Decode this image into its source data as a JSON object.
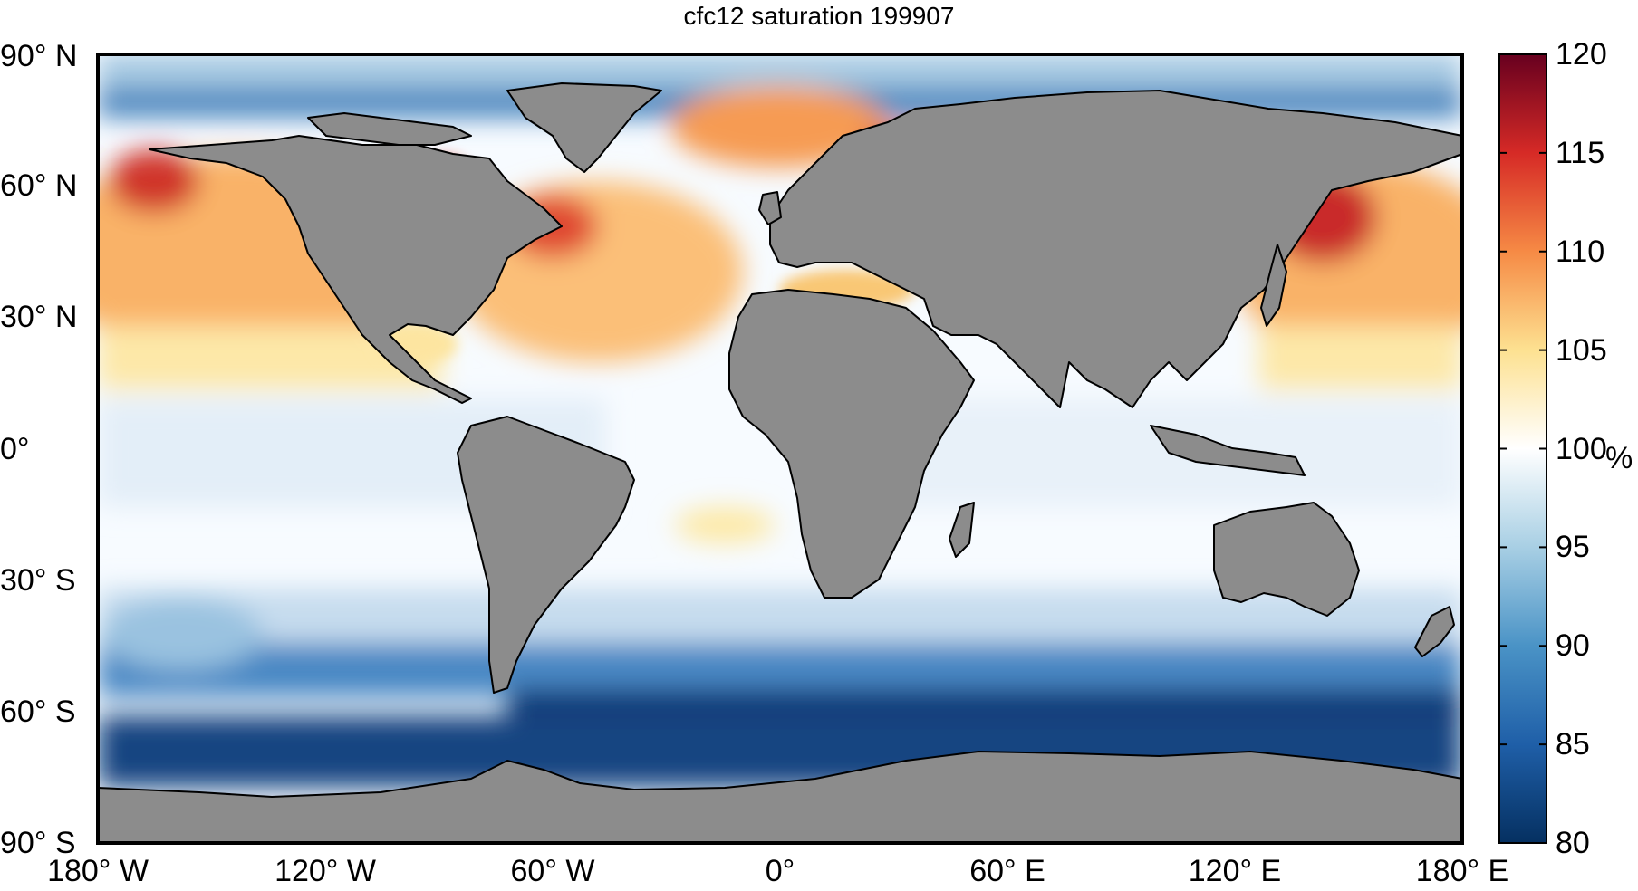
{
  "title": "cfc12 saturation 199907",
  "map": {
    "projection": "equirectangular",
    "lon_range": [
      -180,
      180
    ],
    "lat_range": [
      -90,
      90
    ],
    "lat_ticks": [
      {
        "value": 90,
        "label": "90° N"
      },
      {
        "value": 60,
        "label": "60° N"
      },
      {
        "value": 30,
        "label": "30° N"
      },
      {
        "value": 0,
        "label": "0°"
      },
      {
        "value": -30,
        "label": "30° S"
      },
      {
        "value": -60,
        "label": "60° S"
      },
      {
        "value": -90,
        "label": "90° S"
      }
    ],
    "lon_ticks": [
      {
        "value": -180,
        "label": "180° W"
      },
      {
        "value": -120,
        "label": "120° W"
      },
      {
        "value": -60,
        "label": "60° W"
      },
      {
        "value": 0,
        "label": "0°"
      },
      {
        "value": 60,
        "label": "60° E"
      },
      {
        "value": 120,
        "label": "120° E"
      },
      {
        "value": 180,
        "label": "180° E"
      }
    ],
    "land_color": "#8c8c8c"
  },
  "colorbar": {
    "min": 80,
    "max": 120,
    "ticks": [
      "120",
      "115",
      "110",
      "105",
      "100",
      "95",
      "90",
      "85",
      "80"
    ],
    "unit": "%",
    "colors": {
      "80": "#053061",
      "85": "#1f5fa8",
      "90": "#4a93c6",
      "95": "#a8cfe4",
      "100": "#ffffff",
      "105": "#fde191",
      "110": "#f68a45",
      "115": "#d62a26",
      "120": "#67001f"
    }
  }
}
